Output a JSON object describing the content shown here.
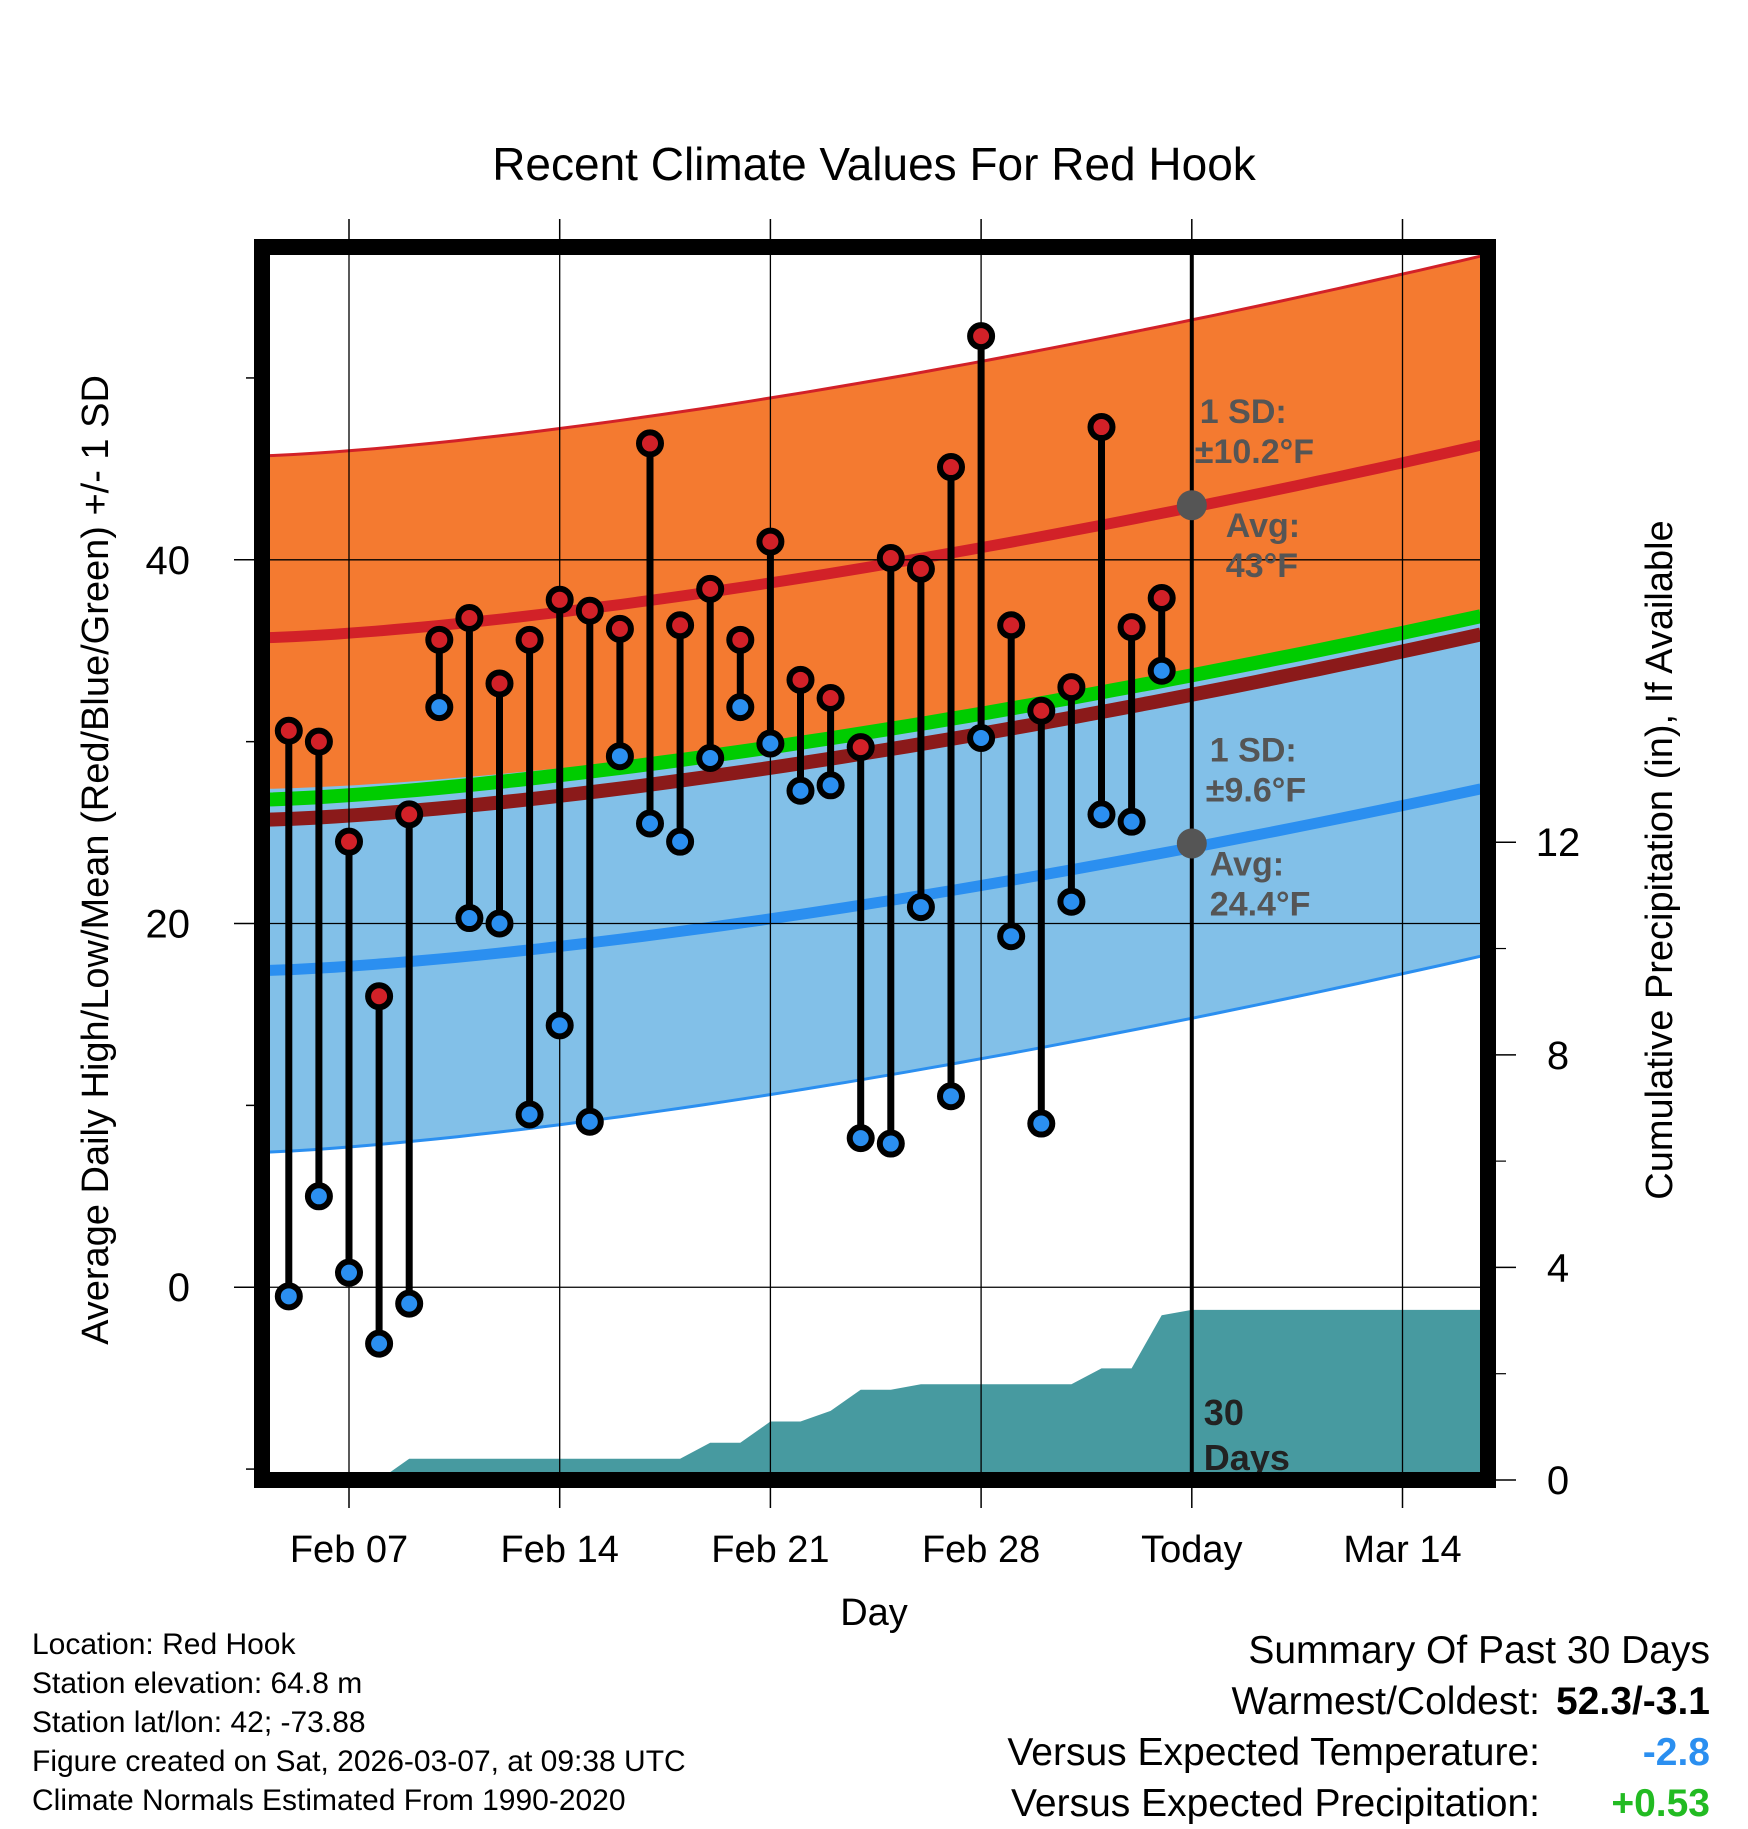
{
  "chart_data": {
    "type": "climate-range",
    "title": "Recent Climate Values For Red Hook",
    "xlabel": "Day",
    "ylabel_left": "Average Daily High/Low/Mean (Red/Blue/Green) +/- 1 SD",
    "ylabel_right": "Cumulative Precipitation (in), If Available",
    "x_tick_labels": [
      "Feb 07",
      "Feb 14",
      "Feb 21",
      "Feb 28",
      "Today",
      "Mar 14"
    ],
    "x_tick_days": [
      4,
      11,
      18,
      25,
      32,
      39
    ],
    "today_day": 32,
    "xlim_days": [
      0.8,
      41.6
    ],
    "y_left_ticks": [
      0,
      20,
      40
    ],
    "y_left_range": [
      -10.6,
      57.2
    ],
    "y_right_ticks": [
      0,
      4,
      8,
      12
    ],
    "y_right_range": [
      0,
      23.2
    ],
    "normals": {
      "high_mean_start": 35.7,
      "high_mean_end": 46.3,
      "high_sd_start": 10.0,
      "high_sd_end": 10.4,
      "mean_start": 26.8,
      "mean_end": 36.9,
      "low_mean_start": 17.4,
      "low_mean_end": 27.4,
      "low_sd_start": 10.0,
      "low_sd_end": 9.2
    },
    "daily_days": [
      2,
      3,
      4,
      5,
      6,
      7,
      8,
      9,
      10,
      11,
      12,
      13,
      14,
      15,
      16,
      17,
      18,
      19,
      20,
      21,
      22,
      23,
      24,
      25,
      26,
      27,
      28,
      29,
      30,
      31
    ],
    "daily_high": [
      30.6,
      30.0,
      24.5,
      16.0,
      26.0,
      35.6,
      36.8,
      33.2,
      35.6,
      37.8,
      37.2,
      36.2,
      46.4,
      36.4,
      38.4,
      35.6,
      41.0,
      33.4,
      32.4,
      29.7,
      40.1,
      39.5,
      45.1,
      52.3,
      36.4,
      31.7,
      33.0,
      47.3,
      36.3,
      37.9
    ],
    "daily_low": [
      -0.5,
      5.0,
      0.8,
      -3.1,
      -0.9,
      31.9,
      20.3,
      20.0,
      9.5,
      14.4,
      9.1,
      29.2,
      25.5,
      24.5,
      29.1,
      31.9,
      29.9,
      27.3,
      27.6,
      8.2,
      7.9,
      20.9,
      10.5,
      30.2,
      19.3,
      9.0,
      21.2,
      26.0,
      25.6,
      33.9
    ],
    "precip_days": [
      1,
      5,
      6,
      7,
      8,
      9,
      10,
      11,
      12,
      13,
      14,
      15,
      16,
      17,
      18,
      19,
      20,
      21,
      22,
      23,
      24,
      25,
      26,
      27,
      28,
      29,
      30,
      31,
      32,
      41.6
    ],
    "precip_cum": [
      0,
      0,
      0.4,
      0.4,
      0.4,
      0.4,
      0.4,
      0.4,
      0.4,
      0.4,
      0.4,
      0.4,
      0.7,
      0.7,
      1.1,
      1.1,
      1.3,
      1.7,
      1.7,
      1.8,
      1.8,
      1.8,
      1.8,
      1.8,
      1.8,
      2.1,
      2.1,
      3.1,
      3.2,
      3.2
    ],
    "annotations": {
      "high_sd_label": "1 SD:",
      "high_sd_value": "±10.2°F",
      "high_avg_label": "Avg:",
      "high_avg_value": "43°F",
      "high_avg": 43,
      "low_sd_label": "1 SD:",
      "low_sd_value": "±9.6°F",
      "low_avg_label": "Avg:",
      "low_avg_value": "24.4°F",
      "low_avg": 24.4,
      "days_label_1": "30",
      "days_label_2": "Days"
    },
    "colors": {
      "high_band": "#f47a30",
      "high_line": "#d22128",
      "low_band": "#82c0e8",
      "low_line": "#2b8ff0",
      "mean_line": "#00cc00",
      "precip_fill": "#479aa0",
      "high_dot": "#d22128",
      "low_dot": "#2b8ff0",
      "annotation": "#555555"
    }
  },
  "location": {
    "location_line": "Location: Red Hook",
    "elevation_line": "Station elevation: 64.8 m",
    "latlon_line": "Station lat/lon: 42; -73.88",
    "created_line": "Figure created on Sat, 2026-03-07, at 09:38 UTC",
    "normals_line": "Climate Normals Estimated From 1990-2020"
  },
  "summary": {
    "title": "Summary Of Past 30 Days",
    "warm_cold_label": "Warmest/Coldest:",
    "warm_cold_value": "52.3/-3.1",
    "temp_label": "Versus Expected Temperature:",
    "temp_value": "-2.8",
    "temp_color": "#2b8ff0",
    "precip_label": "Versus Expected Precipitation:",
    "precip_value": "+0.53",
    "precip_color": "#22bb22"
  }
}
